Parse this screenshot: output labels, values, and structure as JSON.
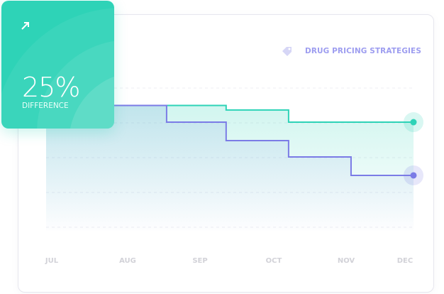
{
  "stat_card": {
    "value": "25%",
    "label": "DIFFERENCE",
    "icon": "arrow-up-right-icon",
    "color": "#2ed3b7"
  },
  "legend": {
    "label": "DRUG PRICING STRATEGIES",
    "icon": "tag-icon"
  },
  "chart_data": {
    "type": "line",
    "step": true,
    "categories": [
      "JUL",
      "AUG",
      "SEP",
      "OCT",
      "NOV",
      "DEC"
    ],
    "xlim": [
      0,
      5
    ],
    "ylim": [
      0,
      4
    ],
    "grid": true,
    "y_tick_labels_shown": false,
    "series": [
      {
        "color": "#2ed3b7",
        "points": [
          [
            0,
            3.5
          ],
          [
            2.45,
            3.5
          ],
          [
            2.45,
            3.37
          ],
          [
            3.3,
            3.37
          ],
          [
            3.3,
            3.02
          ],
          [
            5,
            3.02
          ]
        ]
      },
      {
        "color": "#7b7be6",
        "points": [
          [
            0,
            3.5
          ],
          [
            1.64,
            3.5
          ],
          [
            1.64,
            3.02
          ],
          [
            2.45,
            3.02
          ],
          [
            2.45,
            2.49
          ],
          [
            3.3,
            2.49
          ],
          [
            3.3,
            2.02
          ],
          [
            4.15,
            2.02
          ],
          [
            4.15,
            1.49
          ],
          [
            5,
            1.49
          ]
        ]
      }
    ]
  }
}
